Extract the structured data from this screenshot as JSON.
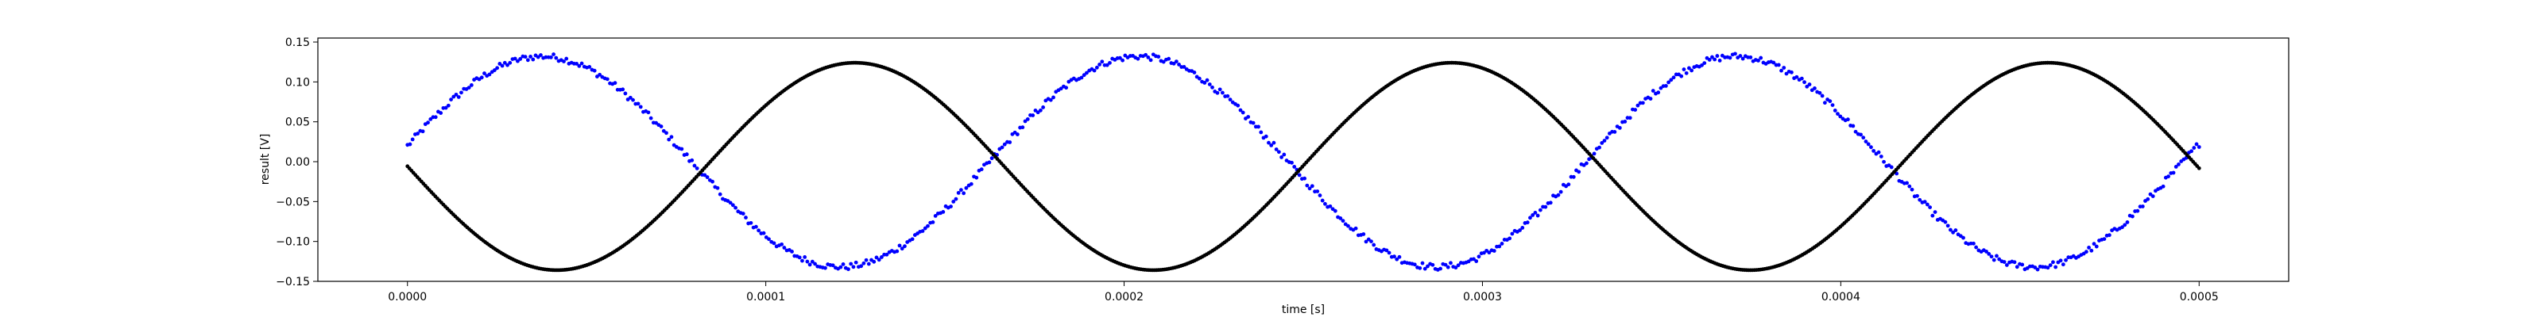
{
  "chart_data": {
    "type": "scatter",
    "xlabel": "time [s]",
    "ylabel": "result [V]",
    "xlim": [
      -2.5e-05,
      0.000525
    ],
    "ylim": [
      -0.15,
      0.155
    ],
    "x_ticks": [
      "0.0000",
      "0.0001",
      "0.0002",
      "0.0003",
      "0.0004",
      "0.0005"
    ],
    "x_tick_values": [
      0,
      0.0001,
      0.0002,
      0.0003,
      0.0004,
      0.0005
    ],
    "y_ticks": [
      "−0.15",
      "−0.10",
      "−0.05",
      "0.00",
      "0.05",
      "0.10",
      "0.15"
    ],
    "y_tick_values": [
      -0.15,
      -0.1,
      -0.05,
      0.0,
      0.05,
      0.1,
      0.15
    ],
    "grid": false,
    "series": [
      {
        "color": "#0000ff",
        "marker": "dot",
        "model": "sine",
        "amplitude": 0.132,
        "period": 0.0001665,
        "phase_offset_x": 4e-06,
        "offset": 0.0,
        "noise_amplitude": 0.004,
        "x_start": 0.0,
        "x_end": 0.0005,
        "point_count": 700
      },
      {
        "color": "#000000",
        "marker": "dot",
        "model": "sine",
        "amplitude": 0.13,
        "period": 0.0001665,
        "phase_offset_x": 8.32e-05,
        "offset": -0.006,
        "noise_amplitude": 0.0,
        "x_start": 0.0,
        "x_end": 0.0005,
        "point_count": 900
      }
    ]
  }
}
